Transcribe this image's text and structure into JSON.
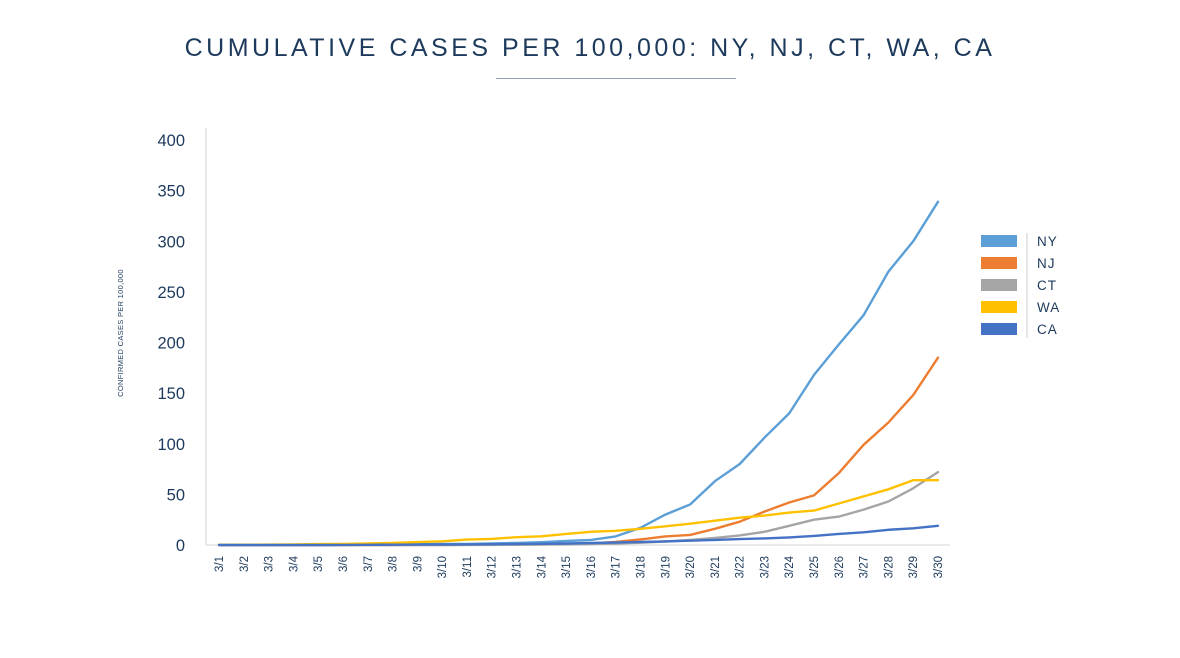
{
  "chart_data": {
    "type": "line",
    "title": "CUMULATIVE CASES PER 100,000: NY, NJ, CT, WA, CA",
    "xlabel": "",
    "ylabel": "CONFIRMED CASES PER 100,000",
    "ylim": [
      0,
      400
    ],
    "yticks": [
      0,
      50,
      100,
      150,
      200,
      250,
      300,
      350,
      400
    ],
    "grid": false,
    "legend_position": "right",
    "categories": [
      "3/1",
      "3/2",
      "3/3",
      "3/4",
      "3/5",
      "3/6",
      "3/7",
      "3/8",
      "3/9",
      "3/10",
      "3/11",
      "3/12",
      "3/13",
      "3/14",
      "3/15",
      "3/16",
      "3/17",
      "3/18",
      "3/19",
      "3/20",
      "3/21",
      "3/22",
      "3/23",
      "3/24",
      "3/25",
      "3/26",
      "3/27",
      "3/28",
      "3/29",
      "3/30"
    ],
    "series": [
      {
        "name": "NY",
        "color": "#5b9fd6",
        "values": [
          0,
          0,
          0,
          0,
          0,
          0.1,
          0.4,
          0.7,
          0.8,
          1,
          1.1,
          1.6,
          2,
          2.8,
          4,
          5,
          8.5,
          17,
          30,
          40,
          63,
          80,
          106,
          130,
          168,
          198,
          227,
          270,
          300,
          339
        ]
      },
      {
        "name": "NJ",
        "color": "#ed7d31",
        "values": [
          0,
          0,
          0,
          0,
          0,
          0,
          0,
          0,
          0.1,
          0.1,
          0.2,
          0.3,
          0.4,
          0.6,
          0.9,
          1.5,
          3,
          5.5,
          8.5,
          10,
          16,
          23,
          33,
          42,
          49,
          71,
          99,
          121,
          148,
          185
        ]
      },
      {
        "name": "CT",
        "color": "#a5a5a5",
        "values": [
          0,
          0,
          0,
          0,
          0,
          0,
          0,
          0,
          0,
          0,
          0.1,
          0.1,
          0.3,
          0.4,
          0.6,
          1,
          1.5,
          2.3,
          3.5,
          5,
          7,
          9.5,
          13,
          19,
          25,
          28,
          35,
          43,
          56,
          72
        ]
      },
      {
        "name": "WA",
        "color": "#ffc000",
        "values": [
          0.2,
          0.3,
          0.4,
          0.6,
          0.9,
          1.1,
          1.5,
          2.1,
          2.9,
          3.7,
          5.3,
          6,
          7.7,
          8.6,
          11,
          13,
          14,
          16,
          18.5,
          21,
          24,
          27,
          29,
          32,
          34,
          41,
          48,
          55,
          64,
          64
        ]
      },
      {
        "name": "CA",
        "color": "#4472c4",
        "values": [
          0,
          0,
          0,
          0,
          0,
          0.1,
          0.2,
          0.3,
          0.4,
          0.5,
          0.6,
          0.8,
          1,
          1.2,
          1.5,
          2,
          2.5,
          3,
          3.6,
          4.2,
          5,
          5.8,
          6.5,
          7.5,
          9,
          11,
          12.5,
          15,
          16.5,
          19
        ]
      }
    ]
  }
}
